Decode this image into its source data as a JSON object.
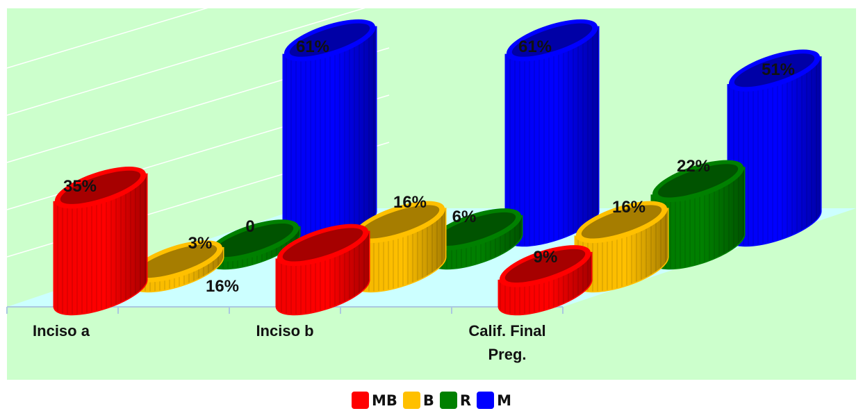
{
  "chart_data": {
    "type": "bar",
    "categories": [
      {
        "line1": "Inciso a",
        "line2": ""
      },
      {
        "line1": "Inciso b",
        "line2": ""
      },
      {
        "line1": "Calif. Final",
        "line2": "Preg."
      }
    ],
    "series": [
      {
        "name": "MB",
        "color": "#ff0000",
        "values": [
          35,
          16,
          9
        ],
        "labels": [
          "35%",
          "16%",
          "9%"
        ]
      },
      {
        "name": "B",
        "color": "#ffc000",
        "values": [
          3,
          16,
          16
        ],
        "labels": [
          "3%",
          "16%",
          "16%"
        ]
      },
      {
        "name": "R",
        "color": "#008000",
        "values": [
          0,
          6,
          22
        ],
        "labels": [
          "0",
          "6%",
          "22%"
        ]
      },
      {
        "name": "M",
        "color": "#0000ff",
        "values": [
          61,
          61,
          51
        ],
        "labels": [
          "61%",
          "61%",
          "51%"
        ]
      }
    ],
    "ylim": [
      0,
      70
    ],
    "grid": true,
    "legend_position": "bottom",
    "background_color": "#ccffcc",
    "floor_color": "#ccffff"
  }
}
